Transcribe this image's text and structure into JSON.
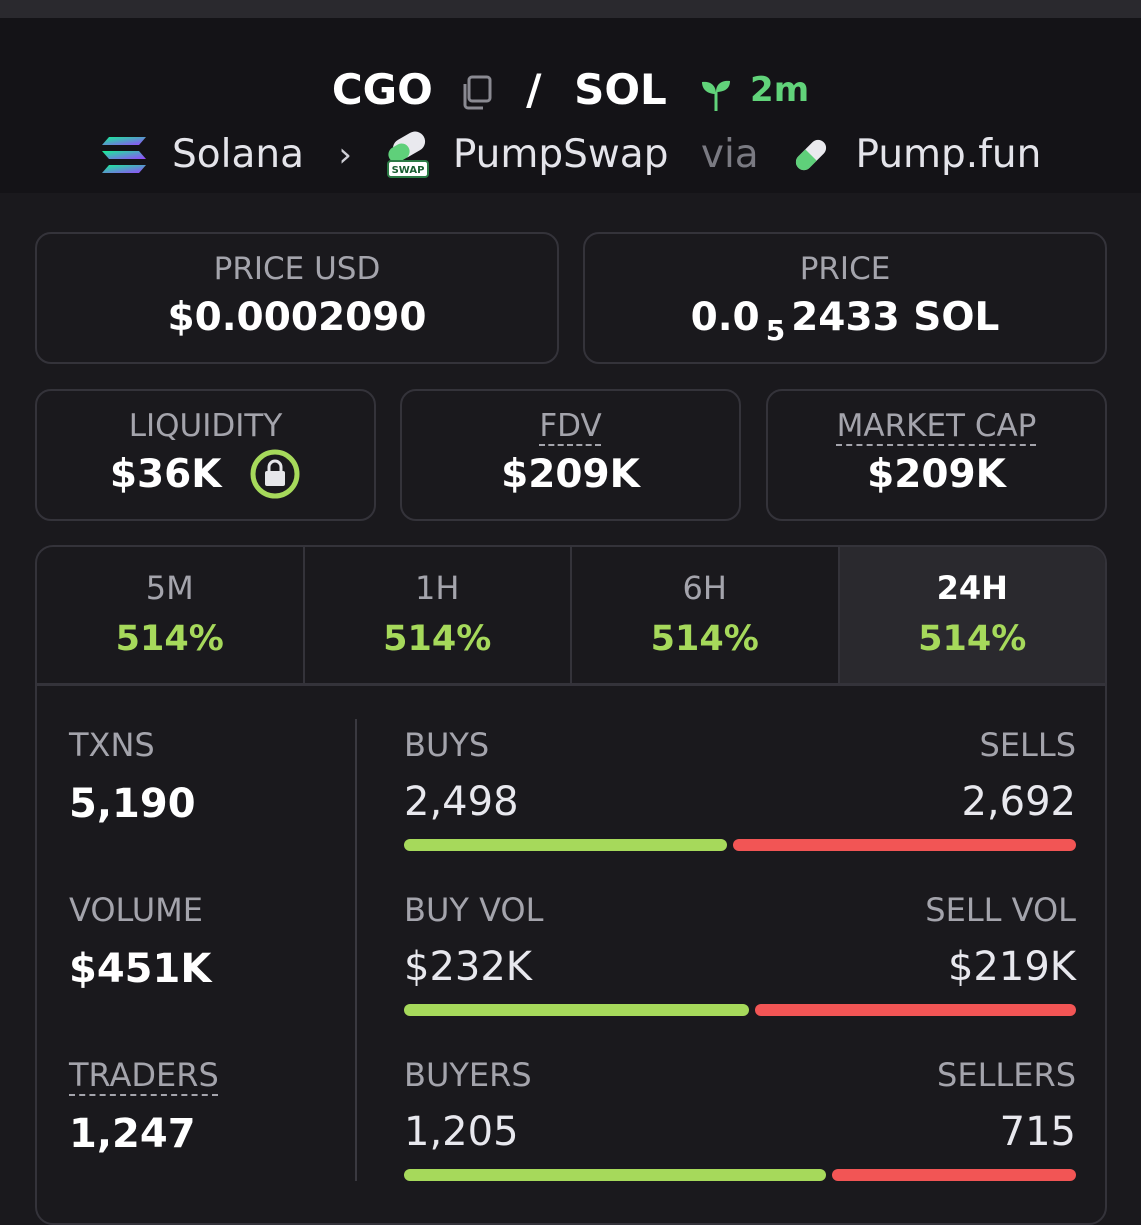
{
  "pair": {
    "base": "CGO",
    "quote": "SOL",
    "separator": "/",
    "age": "2m"
  },
  "breadcrumb": {
    "chain": "Solana",
    "dex": "PumpSwap",
    "via": "via",
    "launchpad": "Pump.fun",
    "dex_badge": "SWAP"
  },
  "price_usd": {
    "label": "PRICE USD",
    "value": "$0.0002090"
  },
  "price_native": {
    "label": "PRICE",
    "prefix": "0.0",
    "zeros": "5",
    "digits": "2433",
    "unit": "SOL"
  },
  "liquidity": {
    "label": "LIQUIDITY",
    "value": "$36K"
  },
  "fdv": {
    "label": "FDV",
    "value": "$209K"
  },
  "market_cap": {
    "label": "MARKET CAP",
    "value": "$209K"
  },
  "tabs": [
    {
      "label": "5M",
      "change": "514%",
      "percent": 514
    },
    {
      "label": "1H",
      "change": "514%",
      "percent": 514
    },
    {
      "label": "6H",
      "change": "514%",
      "percent": 514
    },
    {
      "label": "24H",
      "change": "514%",
      "percent": 514
    }
  ],
  "active_tab": "24H",
  "stats": {
    "txns": {
      "label": "TXNS",
      "value": "5,190"
    },
    "volume": {
      "label": "VOLUME",
      "value": "$451K"
    },
    "traders": {
      "label": "TRADERS",
      "value": "1,247"
    }
  },
  "ratios": {
    "txns": {
      "left_label": "BUYS",
      "right_label": "SELLS",
      "left_value": "2,498",
      "right_value": "2,692",
      "buy_fraction": 0.481
    },
    "volume": {
      "left_label": "BUY VOL",
      "right_label": "SELL VOL",
      "left_value": "$232K",
      "right_value": "$219K",
      "buy_fraction": 0.514
    },
    "traders": {
      "left_label": "BUYERS",
      "right_label": "SELLERS",
      "left_value": "1,205",
      "right_value": "715",
      "buy_fraction": 0.628
    }
  },
  "colors": {
    "positive": "#a6d95b",
    "negative": "#f25555",
    "age": "#61d37a",
    "background": "#1a191d",
    "header": "#141317"
  }
}
